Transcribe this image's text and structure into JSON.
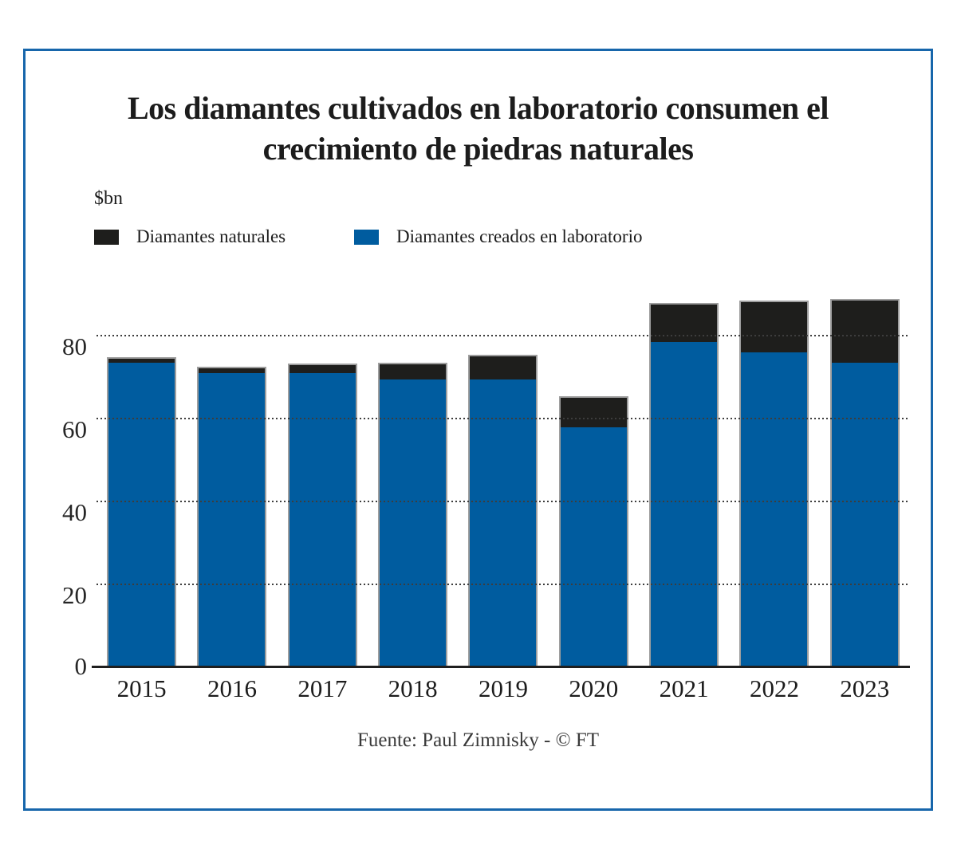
{
  "title": "Los diamantes cultivados en laboratorio consumen el crecimiento de piedras naturales",
  "units_label": "$bn",
  "legend": [
    {
      "label": "Diamantes naturales",
      "color": "#1e1e1c"
    },
    {
      "label": "Diamantes creados en laboratorio",
      "color": "#005c9f"
    }
  ],
  "source": "Fuente: Paul Zimnisky - © FT",
  "colors": {
    "natural": "#1e1e1c",
    "lab": "#005c9f",
    "frame_border": "#1766ab",
    "bar_outline": "#9e9e9e",
    "gridline": "#3d3d3d"
  },
  "chart_data": {
    "type": "bar",
    "stacked": true,
    "title": "Los diamantes cultivados en laboratorio consumen el crecimiento de piedras naturales",
    "ylabel": "$bn",
    "xlabel": "",
    "categories": [
      "2015",
      "2016",
      "2017",
      "2018",
      "2019",
      "2020",
      "2021",
      "2022",
      "2023"
    ],
    "series": [
      {
        "name": "Diamantes creados en laboratorio",
        "color": "#005c9f",
        "stack_position": "bottom",
        "values": [
          73.5,
          71,
          71,
          69.5,
          69.5,
          58,
          78.5,
          76,
          73.5
        ]
      },
      {
        "name": "Diamantes naturales",
        "color": "#1e1e1c",
        "stack_position": "top",
        "values": [
          1,
          1.2,
          2,
          3.7,
          5.6,
          7,
          9,
          12.2,
          15
        ]
      }
    ],
    "totals": [
      74.5,
      72.2,
      73,
      73.2,
      75.1,
      65,
      87.5,
      88.2,
      88.5
    ],
    "yticks": [
      0,
      20,
      40,
      60,
      80
    ],
    "ylim": [
      0,
      92
    ],
    "grid": "dotted horizontal",
    "legend_position": "top-left"
  }
}
